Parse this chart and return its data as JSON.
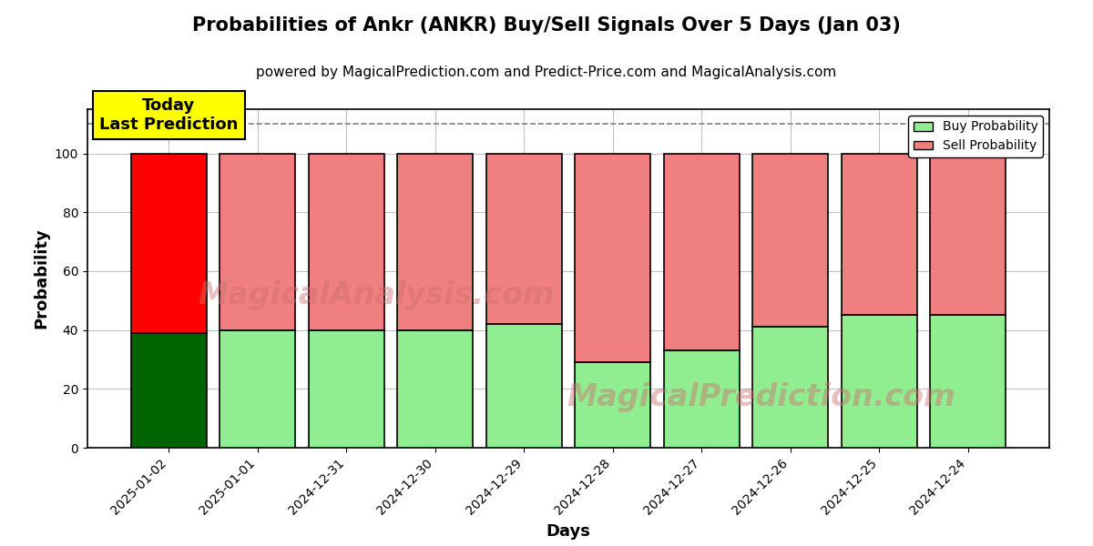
{
  "title": "Probabilities of Ankr (ANKR) Buy/Sell Signals Over 5 Days (Jan 03)",
  "subtitle": "powered by MagicalPrediction.com and Predict-Price.com and MagicalAnalysis.com",
  "xlabel": "Days",
  "ylabel": "Probability",
  "categories": [
    "2025-01-02",
    "2025-01-01",
    "2024-12-31",
    "2024-12-30",
    "2024-12-29",
    "2024-12-28",
    "2024-12-27",
    "2024-12-26",
    "2024-12-25",
    "2024-12-24"
  ],
  "buy_values": [
    39,
    40,
    40,
    40,
    42,
    29,
    33,
    41,
    45,
    45
  ],
  "sell_values": [
    61,
    60,
    60,
    60,
    58,
    71,
    67,
    59,
    55,
    55
  ],
  "today_buy_color": "#006400",
  "today_sell_color": "#FF0000",
  "other_buy_color": "#90EE90",
  "other_sell_color": "#F08080",
  "today_label_bg": "#FFFF00",
  "today_label_text": "Today\nLast Prediction",
  "legend_buy_label": "Buy Probability",
  "legend_sell_label": "Sell Probability",
  "ylim": [
    0,
    115
  ],
  "yticks": [
    0,
    20,
    40,
    60,
    80,
    100
  ],
  "watermark_line1": "MagicalAnalysis.com",
  "watermark_line2": "MagicalPrediction.com",
  "dashed_line_y": 110,
  "bar_width": 0.85,
  "edgecolor": "#000000",
  "edgelinewidth": 1.2,
  "title_fontsize": 15,
  "subtitle_fontsize": 11
}
